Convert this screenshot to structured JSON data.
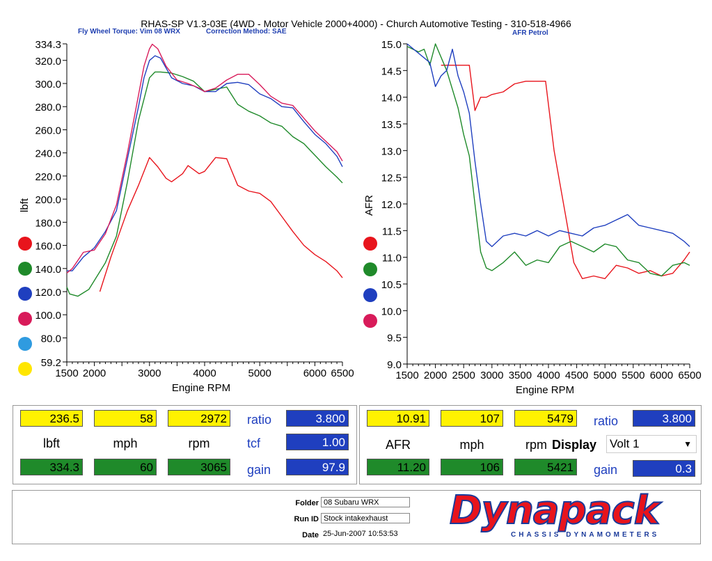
{
  "header": {
    "title": "RHAS-SP V1.3-03E  (4WD - Motor Vehicle 2000+4000) - Church Automotive Testing - 310-518-4966",
    "left_subtitle_1": "Fly Wheel Torque: Vim 08 WRX",
    "left_subtitle_2": "Correction Method: SAE",
    "right_subtitle": "AFR Petrol"
  },
  "legend_colors": [
    "#e8141c",
    "#1f8a2a",
    "#1f3fbf",
    "#d81b5a",
    "#2f9be0",
    "#ffe600"
  ],
  "chart_data": [
    {
      "type": "line",
      "title": "Fly Wheel Torque: Vim 08 WRX",
      "xlabel": "Engine RPM",
      "ylabel": "lbft",
      "xlim": [
        1500,
        6500
      ],
      "ylim": [
        59.2,
        334.3
      ],
      "xticks": [
        1500,
        2000,
        3000,
        4000,
        5000,
        6000,
        6500
      ],
      "xtick_labels": [
        "1500",
        "2000",
        "3000",
        "4000",
        "5000",
        "6000",
        "6500"
      ],
      "yticks": [
        59.2,
        80,
        100,
        120,
        140,
        160,
        180,
        200,
        220,
        240,
        260,
        280,
        300,
        320,
        334.3
      ],
      "ytick_labels": [
        "59.2",
        "80.0",
        "100.0",
        "120.0",
        "140.0",
        "160.0",
        "180.0",
        "200.0",
        "220.0",
        "240.0",
        "260.0",
        "280.0",
        "300.0",
        "320.0",
        "334.3"
      ],
      "series": [
        {
          "name": "red",
          "color": "#e8141c",
          "x": [
            2100,
            2300,
            2600,
            2800,
            3000,
            3150,
            3300,
            3400,
            3600,
            3700,
            3900,
            4000,
            4200,
            4400,
            4600,
            4800,
            5000,
            5200,
            5400,
            5600,
            5800,
            6000,
            6200,
            6400,
            6500
          ],
          "y": [
            120,
            150,
            190,
            212,
            236,
            228,
            218,
            215,
            222,
            229,
            222,
            224,
            236,
            235,
            212,
            207,
            205,
            198,
            185,
            172,
            160,
            152,
            146,
            138,
            132
          ]
        },
        {
          "name": "green",
          "color": "#1f8a2a",
          "x": [
            1500,
            1550,
            1700,
            1900,
            2200,
            2400,
            2600,
            2800,
            3000,
            3100,
            3200,
            3400,
            3600,
            3800,
            4000,
            4200,
            4400,
            4600,
            4800,
            5000,
            5200,
            5400,
            5600,
            5800,
            6000,
            6200,
            6400,
            6500
          ],
          "y": [
            124,
            118,
            116,
            122,
            145,
            168,
            215,
            268,
            305,
            310,
            310,
            309,
            306,
            302,
            293,
            295,
            297,
            282,
            276,
            272,
            266,
            263,
            254,
            248,
            238,
            228,
            219,
            214
          ]
        },
        {
          "name": "blue",
          "color": "#1f3fbf",
          "x": [
            1500,
            1600,
            1800,
            2000,
            2200,
            2400,
            2600,
            2800,
            2900,
            3000,
            3100,
            3200,
            3400,
            3600,
            3800,
            4000,
            4200,
            4400,
            4600,
            4800,
            5000,
            5200,
            5400,
            5600,
            5800,
            6000,
            6200,
            6400,
            6500
          ],
          "y": [
            138,
            138,
            150,
            158,
            172,
            190,
            235,
            280,
            305,
            320,
            324,
            322,
            305,
            300,
            298,
            293,
            293,
            300,
            301,
            299,
            291,
            287,
            280,
            279,
            267,
            256,
            248,
            237,
            228
          ]
        },
        {
          "name": "magenta",
          "color": "#d81b5a",
          "x": [
            1500,
            1600,
            1800,
            2000,
            2200,
            2400,
            2600,
            2800,
            2900,
            3000,
            3050,
            3150,
            3300,
            3500,
            3700,
            3900,
            4000,
            4200,
            4400,
            4600,
            4800,
            5000,
            5200,
            5400,
            5600,
            5800,
            6000,
            6200,
            6400,
            6500
          ],
          "y": [
            136,
            140,
            154,
            156,
            170,
            195,
            240,
            290,
            315,
            330,
            334,
            330,
            315,
            303,
            300,
            296,
            293,
            296,
            303,
            308,
            308,
            299,
            289,
            283,
            281,
            270,
            259,
            250,
            241,
            233
          ]
        }
      ]
    },
    {
      "type": "line",
      "title": "AFR Petrol",
      "xlabel": "Engine RPM",
      "ylabel": "AFR",
      "xlim": [
        1500,
        6500
      ],
      "ylim": [
        9.0,
        15.0
      ],
      "xticks": [
        1500,
        2000,
        2500,
        3000,
        3500,
        4000,
        4500,
        5000,
        5500,
        6000,
        6500
      ],
      "xtick_labels": [
        "1500",
        "2000",
        "2500",
        "3000",
        "3500",
        "4000",
        "4500",
        "5000",
        "5500",
        "6000",
        "6500"
      ],
      "yticks": [
        9.0,
        9.5,
        10.0,
        10.5,
        11.0,
        11.5,
        12.0,
        12.5,
        13.0,
        13.5,
        14.0,
        14.5,
        15.0
      ],
      "ytick_labels": [
        "9.0",
        "9.5",
        "10.0",
        "10.5",
        "11.0",
        "11.5",
        "12.0",
        "12.5",
        "13.0",
        "13.5",
        "14.0",
        "14.5",
        "15.0"
      ],
      "series": [
        {
          "name": "red",
          "color": "#e8141c",
          "x": [
            2100,
            2300,
            2500,
            2600,
            2700,
            2800,
            2900,
            3000,
            3200,
            3400,
            3600,
            3800,
            3950,
            4100,
            4300,
            4450,
            4600,
            4800,
            5000,
            5200,
            5400,
            5600,
            5800,
            6000,
            6200,
            6400,
            6500
          ],
          "y": [
            14.6,
            14.6,
            14.6,
            14.6,
            13.75,
            14.0,
            14.0,
            14.05,
            14.1,
            14.25,
            14.3,
            14.3,
            14.3,
            13.0,
            11.8,
            10.9,
            10.6,
            10.65,
            10.6,
            10.85,
            10.8,
            10.7,
            10.75,
            10.65,
            10.7,
            10.95,
            11.1
          ]
        },
        {
          "name": "green",
          "color": "#1f8a2a",
          "x": [
            1500,
            1700,
            1800,
            1900,
            2000,
            2200,
            2400,
            2500,
            2600,
            2700,
            2800,
            2900,
            3000,
            3200,
            3400,
            3600,
            3800,
            4000,
            4200,
            4400,
            4600,
            4800,
            5000,
            5200,
            5400,
            5600,
            5800,
            6000,
            6200,
            6400,
            6500
          ],
          "y": [
            14.95,
            14.85,
            14.9,
            14.6,
            15.0,
            14.5,
            13.8,
            13.3,
            12.9,
            12.0,
            11.1,
            10.8,
            10.75,
            10.9,
            11.1,
            10.85,
            10.95,
            10.9,
            11.2,
            11.3,
            11.2,
            11.1,
            11.25,
            11.2,
            10.95,
            10.9,
            10.7,
            10.65,
            10.85,
            10.9,
            10.85
          ]
        },
        {
          "name": "blue",
          "color": "#1f3fbf",
          "x": [
            1500,
            1900,
            2000,
            2100,
            2200,
            2300,
            2400,
            2500,
            2600,
            2700,
            2800,
            2900,
            3000,
            3200,
            3400,
            3600,
            3800,
            4000,
            4200,
            4400,
            4600,
            4800,
            5000,
            5200,
            5400,
            5600,
            5800,
            6000,
            6200,
            6400,
            6500
          ],
          "y": [
            15.0,
            14.65,
            14.2,
            14.4,
            14.5,
            14.9,
            14.4,
            14.1,
            13.7,
            12.8,
            12.0,
            11.3,
            11.2,
            11.4,
            11.45,
            11.4,
            11.5,
            11.4,
            11.5,
            11.45,
            11.4,
            11.55,
            11.6,
            11.7,
            11.8,
            11.6,
            11.55,
            11.5,
            11.45,
            11.3,
            11.2
          ]
        }
      ]
    }
  ],
  "left_readout": {
    "top_values": [
      "236.5",
      "58",
      "2972"
    ],
    "units": [
      "lbft",
      "mph",
      "rpm"
    ],
    "bottom_values": [
      "334.3",
      "60",
      "3065"
    ],
    "ratio_label": "ratio",
    "ratio_value": "3.800",
    "tcf_label": "tcf",
    "tcf_value": "1.00",
    "gain_label": "gain",
    "gain_value": "97.9"
  },
  "right_readout": {
    "top_values": [
      "10.91",
      "107",
      "5479"
    ],
    "units": [
      "AFR",
      "mph",
      "rpm"
    ],
    "bottom_values": [
      "11.20",
      "106",
      "5421"
    ],
    "ratio_label": "ratio",
    "ratio_value": "3.800",
    "display_label": "Display",
    "display_value": "Volt 1",
    "gain_label": "gain",
    "gain_value": "0.3"
  },
  "info": {
    "folder_label": "Folder",
    "folder_value": "08 Subaru WRX",
    "runid_label": "Run ID",
    "runid_value": "Stock intakexhaust",
    "date_label": "Date",
    "date_value": "25-Jun-2007  10:53:53"
  },
  "logo": {
    "brand": "Dynapack",
    "tagline": "CHASSIS   DYNAMOMETERS"
  }
}
